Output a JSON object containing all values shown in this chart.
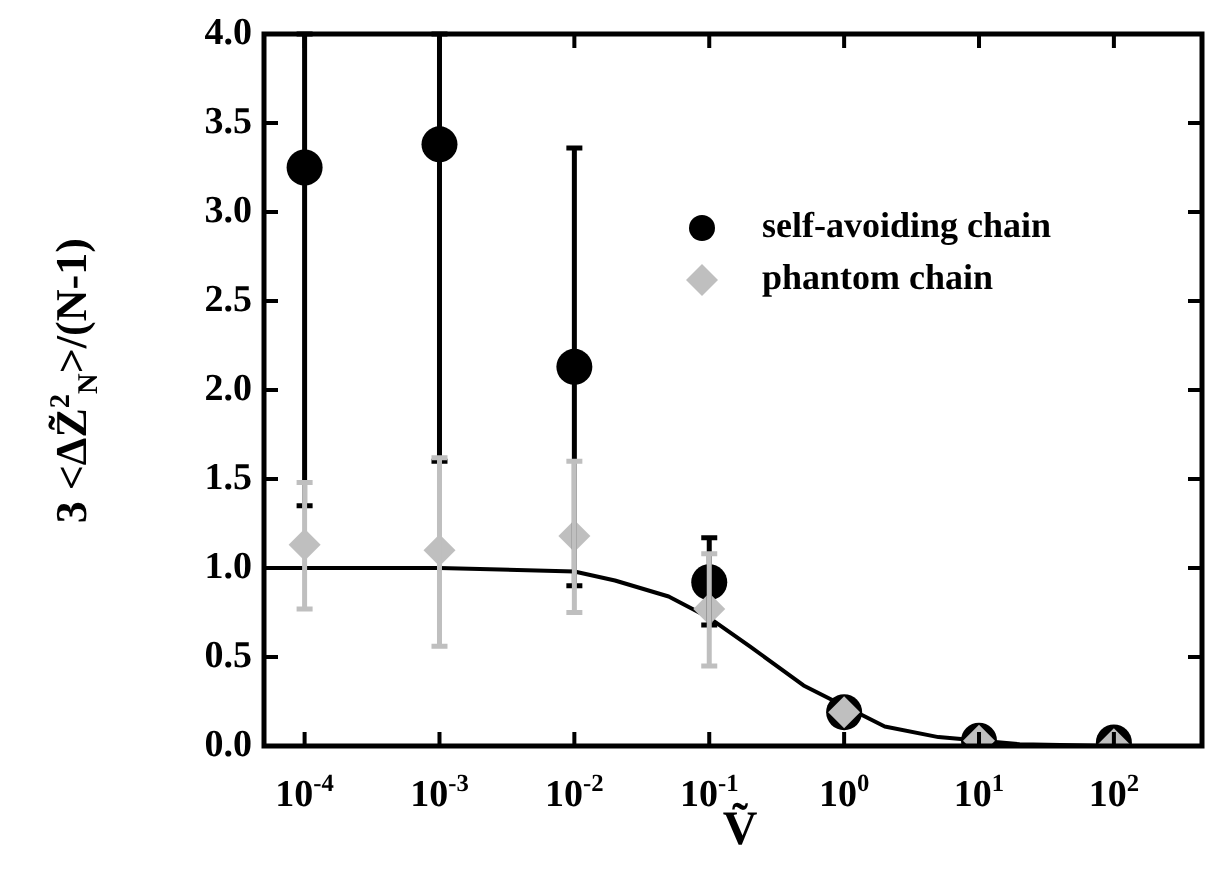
{
  "chart_data": {
    "type": "scatter",
    "xlabel": "Ṽ",
    "ylabel": "3 <ΔZ̃$^{2}$$_{N}$>/(N-1)",
    "log": "x",
    "xlim": [
      5e-05,
      450
    ],
    "xticks": [
      {
        "value": 0.0001,
        "label": "10$^{-4}$"
      },
      {
        "value": 0.001,
        "label": "10$^{-3}$"
      },
      {
        "value": 0.01,
        "label": "10$^{-2}$"
      },
      {
        "value": 0.1,
        "label": "10$^{-1}$"
      },
      {
        "value": 1,
        "label": "10$^{0}$"
      },
      {
        "value": 10,
        "label": "10$^{1}$"
      },
      {
        "value": 100,
        "label": "10$^{2}$"
      }
    ],
    "ylim": [
      0,
      4
    ],
    "yticks": [
      {
        "value": 0,
        "label": "0.0"
      },
      0.5,
      {
        "value": 1,
        "label": "1.0"
      },
      1.5,
      {
        "value": 2,
        "label": "2.0"
      },
      2.5,
      {
        "value": 3,
        "label": "3.0"
      },
      3.5,
      {
        "value": 4,
        "label": "4.0"
      }
    ],
    "legend": "top right",
    "grid": false,
    "series": [
      {
        "type": "line",
        "color": "#000000",
        "marker": "none",
        "line_style": "solid",
        "x": [
          5e-05,
          0.001,
          0.01,
          0.02,
          0.05,
          0.1,
          0.2,
          0.5,
          2,
          5,
          20,
          100,
          450
        ],
        "values": [
          1,
          1,
          0.98,
          0.93,
          0.84,
          0.72,
          0.56,
          0.34,
          0.11,
          0.05,
          0.01,
          0,
          0
        ]
      },
      {
        "name": "self-avoiding chain",
        "color": "#000000",
        "marker": "circle",
        "x": [
          0.0001,
          0.001,
          0.01,
          0.1,
          1,
          10,
          100
        ],
        "values": [
          3.25,
          3.38,
          2.13,
          0.92,
          0.19,
          0.03,
          0.02
        ],
        "errors": [
          [
            1.35,
            4
          ],
          [
            1.6,
            4
          ],
          [
            0.9,
            3.36
          ],
          [
            0.68,
            1.17
          ],
          null,
          null,
          null
        ]
      },
      {
        "name": "phantom chain",
        "color": "#bfbfbf",
        "marker": "diamond",
        "x": [
          0.0001,
          0.001,
          0.01,
          0.1,
          1,
          10,
          100
        ],
        "values": [
          1.13,
          1.1,
          1.18,
          0.77,
          0.19,
          0.03,
          0.01
        ],
        "errors": [
          [
            0.77,
            1.48
          ],
          [
            0.56,
            1.62
          ],
          [
            0.75,
            1.6
          ],
          [
            0.45,
            1.08
          ],
          null,
          null,
          null
        ]
      }
    ]
  }
}
